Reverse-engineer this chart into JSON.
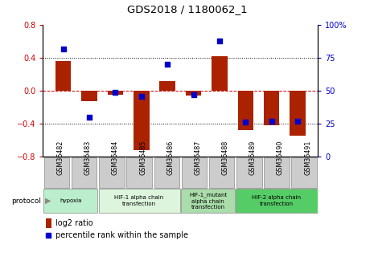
{
  "title": "GDS2018 / 1180062_1",
  "samples": [
    "GSM36482",
    "GSM36483",
    "GSM36484",
    "GSM36485",
    "GSM36486",
    "GSM36487",
    "GSM36488",
    "GSM36489",
    "GSM36490",
    "GSM36491"
  ],
  "log2_ratio": [
    0.36,
    -0.13,
    -0.05,
    -0.72,
    0.12,
    -0.06,
    0.42,
    -0.48,
    -0.42,
    -0.55
  ],
  "percentile_rank": [
    82,
    30,
    49,
    46,
    70,
    47,
    88,
    26,
    27,
    27
  ],
  "bar_color": "#aa2200",
  "dot_color": "#0000cc",
  "ylim_left": [
    -0.8,
    0.8
  ],
  "ylim_right": [
    0,
    100
  ],
  "yticks_left": [
    -0.8,
    -0.4,
    0.0,
    0.4,
    0.8
  ],
  "yticks_right": [
    0,
    25,
    50,
    75,
    100
  ],
  "hline0_color": "#cc0000",
  "hline_color": "#000000",
  "protocol_groups": [
    {
      "label": "hypoxia",
      "start": 0,
      "end": 2,
      "color": "#bbeecc"
    },
    {
      "label": "HIF-1 alpha chain\ntransfection",
      "start": 2,
      "end": 5,
      "color": "#ddf5dd"
    },
    {
      "label": "HIF-1_mutant\nalpha chain\ntransfection",
      "start": 5,
      "end": 7,
      "color": "#aaddaa"
    },
    {
      "label": "HIF-2 alpha chain\ntransfection",
      "start": 7,
      "end": 10,
      "color": "#55cc66"
    }
  ],
  "legend_log2": "log2 ratio",
  "legend_pct": "percentile rank within the sample",
  "bar_width": 0.6,
  "dot_size": 25,
  "tick_box_color": "#cccccc",
  "tick_box_edge": "#888888"
}
